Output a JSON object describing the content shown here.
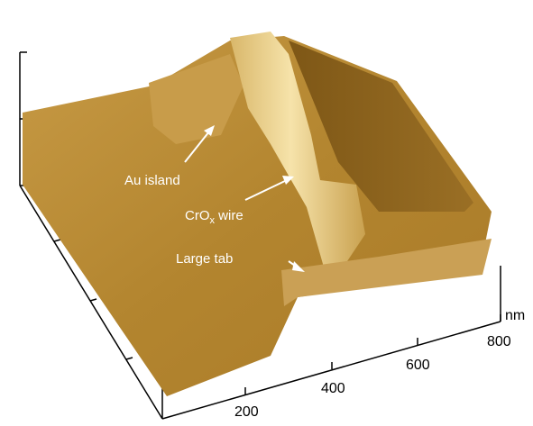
{
  "labels": {
    "au_island": "Au island",
    "wire": {
      "text": "CrO",
      "subscript": "x",
      "suffix": " wire"
    },
    "large_tab": "Large tab"
  },
  "axis": {
    "unit": "nm",
    "ticks": [
      200,
      400,
      600,
      800
    ]
  }
}
